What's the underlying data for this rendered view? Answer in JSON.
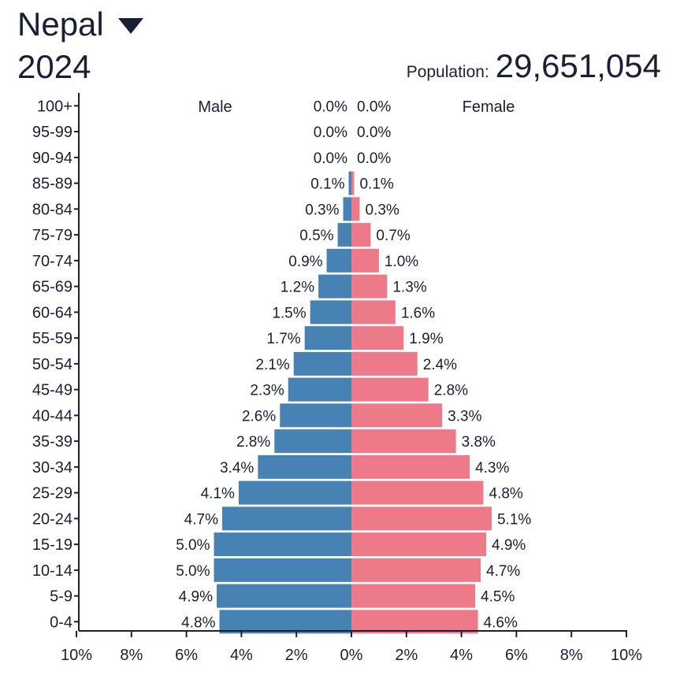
{
  "header": {
    "country": "Nepal",
    "year": "2024",
    "population_label": "Population:",
    "population_value": "29,651,054",
    "dropdown_icon": "caret-down-icon"
  },
  "chart_data": {
    "type": "bar",
    "orientation": "horizontal-population-pyramid",
    "categories": [
      "100+",
      "95-99",
      "90-94",
      "85-89",
      "80-84",
      "75-79",
      "70-74",
      "65-69",
      "60-64",
      "55-59",
      "50-54",
      "45-49",
      "40-44",
      "35-39",
      "30-34",
      "25-29",
      "20-24",
      "15-19",
      "10-14",
      "5-9",
      "0-4"
    ],
    "series": [
      {
        "name": "Male",
        "color": "#4682b4",
        "values": [
          0.0,
          0.0,
          0.0,
          0.1,
          0.3,
          0.5,
          0.9,
          1.2,
          1.5,
          1.7,
          2.1,
          2.3,
          2.6,
          2.8,
          3.4,
          4.1,
          4.7,
          5.0,
          5.0,
          4.9,
          4.8
        ],
        "labels": [
          "0.0%",
          "0.0%",
          "0.0%",
          "0.1%",
          "0.3%",
          "0.5%",
          "0.9%",
          "1.2%",
          "1.5%",
          "1.7%",
          "2.1%",
          "2.3%",
          "2.6%",
          "2.8%",
          "3.4%",
          "4.1%",
          "4.7%",
          "5.0%",
          "5.0%",
          "4.9%",
          "4.8%"
        ]
      },
      {
        "name": "Female",
        "color": "#ee7989",
        "values": [
          0.0,
          0.0,
          0.0,
          0.1,
          0.3,
          0.7,
          1.0,
          1.3,
          1.6,
          1.9,
          2.4,
          2.8,
          3.3,
          3.8,
          4.3,
          4.8,
          5.1,
          4.9,
          4.7,
          4.5,
          4.6
        ],
        "labels": [
          "0.0%",
          "0.0%",
          "0.0%",
          "0.1%",
          "0.3%",
          "0.7%",
          "1.0%",
          "1.3%",
          "1.6%",
          "1.9%",
          "2.4%",
          "2.8%",
          "3.3%",
          "3.8%",
          "4.3%",
          "4.8%",
          "5.1%",
          "4.9%",
          "4.7%",
          "4.5%",
          "4.6%"
        ]
      }
    ],
    "x_ticks": [
      "10%",
      "8%",
      "6%",
      "4%",
      "2%",
      "0%",
      "2%",
      "4%",
      "6%",
      "8%",
      "10%"
    ],
    "xlim": [
      -10,
      10
    ],
    "grid": false,
    "axis_color": "#1a1f33"
  }
}
